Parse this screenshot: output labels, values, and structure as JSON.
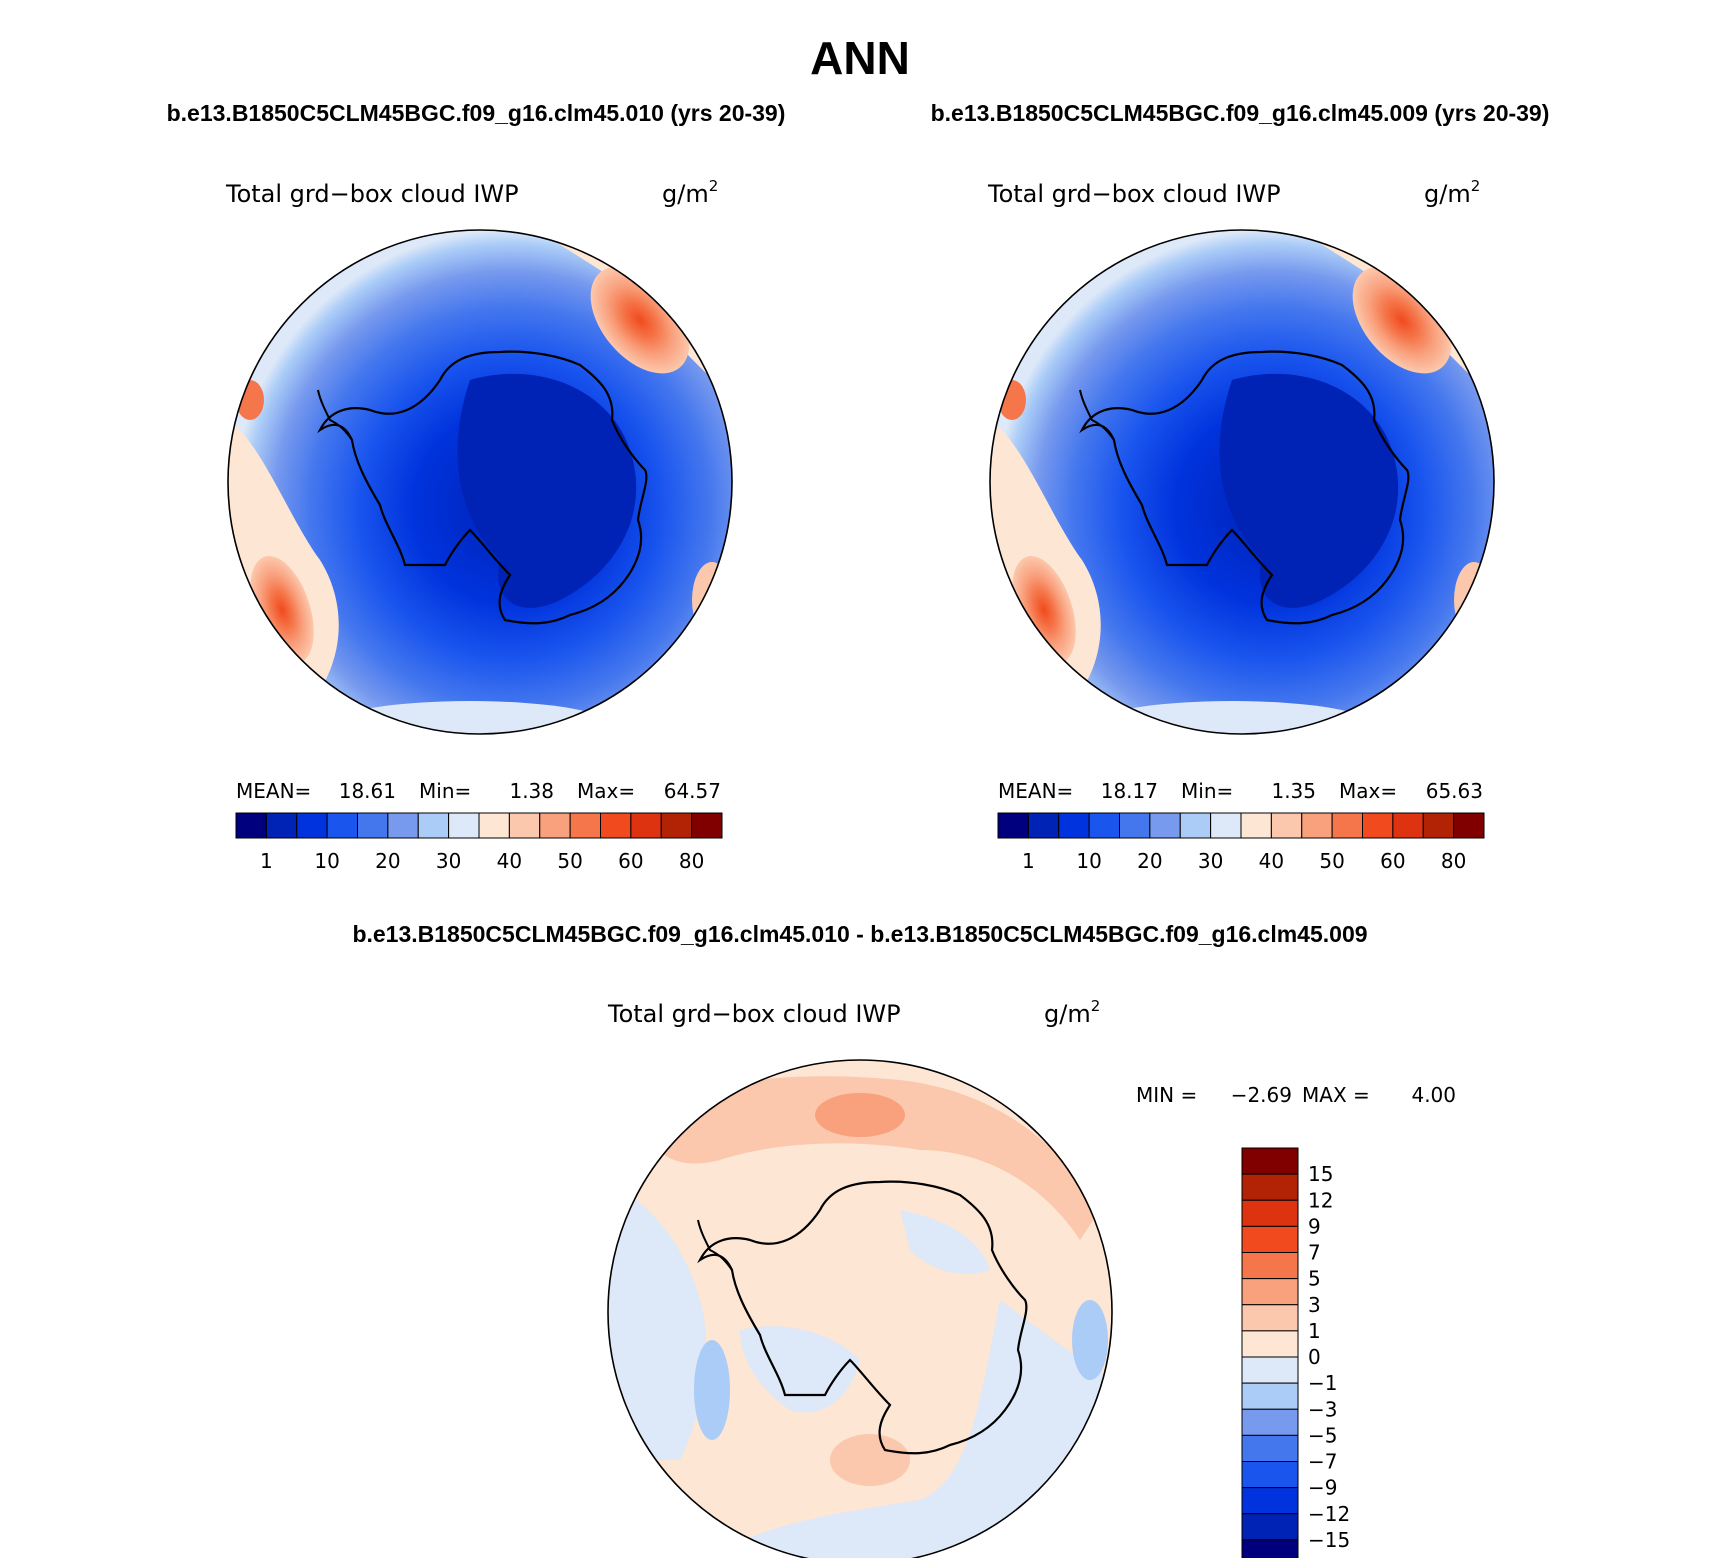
{
  "title": "ANN",
  "left_case": "b.e13.B1850C5CLM45BGC.f09_g16.clm45.010 (yrs 20-39)",
  "right_case": "b.e13.B1850C5CLM45BGC.f09_g16.clm45.009 (yrs 20-39)",
  "diff_case": "b.e13.B1850C5CLM45BGC.f09_g16.clm45.010 - b.e13.B1850C5CLM45BGC.f09_g16.clm45.009",
  "panels": [
    {
      "variable": "Total grd−box cloud IWP",
      "units_base": "g/m",
      "units_exp": "2",
      "mean_label": "MEAN=",
      "mean_value": "18.61",
      "min_label": "Min=",
      "min_value": "1.38",
      "max_label": "Max=",
      "max_value": "64.57"
    },
    {
      "variable": "Total grd−box cloud IWP",
      "units_base": "g/m",
      "units_exp": "2",
      "mean_label": "MEAN=",
      "mean_value": "18.17",
      "min_label": "Min=",
      "min_value": "1.35",
      "max_label": "Max=",
      "max_value": "65.63"
    }
  ],
  "diff_panel": {
    "variable": "Total grd−box cloud IWP",
    "units_base": "g/m",
    "units_exp": "2",
    "min_label": "MIN =",
    "min_value": "−2.69",
    "max_label": "MAX =",
    "max_value": "4.00"
  },
  "colorbar_abs": {
    "colors": [
      "#00007f",
      "#0022b5",
      "#0033dd",
      "#1a55ee",
      "#4477ee",
      "#7799ee",
      "#aaccf7",
      "#dde8f8",
      "#fde6d4",
      "#fcc8ad",
      "#f9a07d",
      "#f5764a",
      "#f04a1e",
      "#dd3311",
      "#b22306",
      "#800000"
    ],
    "labels": [
      "1",
      "10",
      "20",
      "30",
      "40",
      "50",
      "60",
      "80"
    ]
  },
  "colorbar_diff": {
    "colors": [
      "#800000",
      "#b22306",
      "#dd3311",
      "#f04a1e",
      "#f5764a",
      "#f9a07d",
      "#fcc8ad",
      "#fde6d4",
      "#dde8f8",
      "#aaccf7",
      "#7799ee",
      "#4477ee",
      "#1a55ee",
      "#0033dd",
      "#0022b5",
      "#00007f"
    ],
    "labels": [
      "15",
      "12",
      "9",
      "7",
      "5",
      "3",
      "1",
      "0",
      "−1",
      "−3",
      "−5",
      "−7",
      "−9",
      "−12",
      "−15"
    ]
  }
}
